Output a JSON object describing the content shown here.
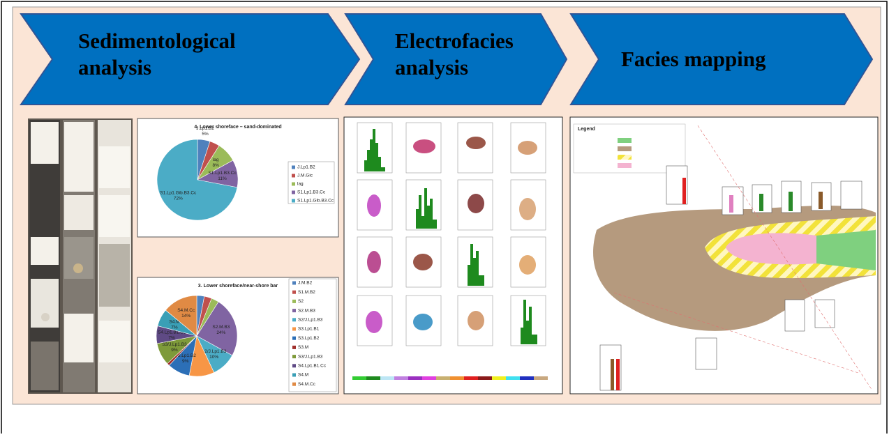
{
  "steps": [
    {
      "title_lines": [
        "Sedimentological",
        "analysis"
      ]
    },
    {
      "title_lines": [
        "Electrofacies",
        "analysis"
      ]
    },
    {
      "title_lines": [
        "Facies mapping"
      ]
    }
  ],
  "map": {
    "legend_title": "Legend"
  },
  "chart_data": [
    {
      "type": "pie",
      "title": "4. Lower shoreface – sand-dominated",
      "categories": [
        "J.Lp1.B2",
        "J.M.Gic",
        "lag",
        "S1.Lp1.B3.Cc",
        "S1.Lp1.Gib.B3.Cc"
      ],
      "values": [
        5,
        4,
        8,
        11,
        72
      ],
      "value_labels": [
        "5%",
        null,
        "8%",
        "11%",
        "72%"
      ],
      "colors": [
        "#4f81bd",
        "#c0504d",
        "#9bbb59",
        "#8064a2",
        "#4bacc6"
      ]
    },
    {
      "type": "pie",
      "title": "3. Lower shoreface/near-shore bar",
      "categories": [
        "J.M.B2",
        "S1.M.B2",
        "S2",
        "S2.M.B3",
        "S2/J.Lp1.B3",
        "S3.Lp1.B1",
        "S3.Lp1.B2",
        "S3.M",
        "S3/J.Lp1.B3",
        "S4.Lp1.B1.Cc",
        "S4.M",
        "S4.M.Cc"
      ],
      "values": [
        3,
        3,
        3,
        24,
        10,
        10,
        9,
        1,
        9,
        7,
        7,
        14
      ],
      "value_labels": [
        null,
        null,
        null,
        "24%",
        "10%",
        null,
        "9%",
        null,
        "9%",
        "7%",
        "7%",
        "14%"
      ],
      "colors": [
        "#4f81bd",
        "#c0504d",
        "#9bbb59",
        "#8064a2",
        "#4bacc6",
        "#f79646",
        "#2c6fb7",
        "#a0302c",
        "#7e9a3a",
        "#5f4a85",
        "#3a9fb6",
        "#e08a44"
      ]
    }
  ]
}
